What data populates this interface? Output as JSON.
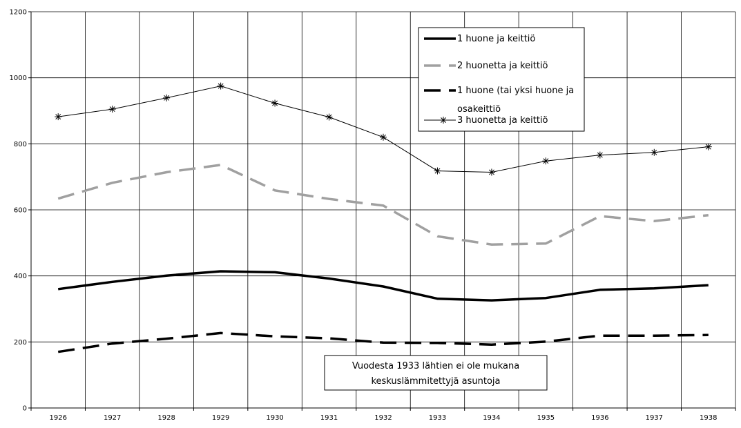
{
  "chart_data": {
    "type": "line",
    "title": "",
    "xlabel": "",
    "ylabel": "",
    "categories": [
      "1926",
      "1927",
      "1928",
      "1929",
      "1930",
      "1931",
      "1932",
      "1933",
      "1934",
      "1935",
      "1936",
      "1937",
      "1938"
    ],
    "y_ticks": [
      "0",
      "200",
      "400",
      "600",
      "800",
      "1000",
      "1200"
    ],
    "ylim": [
      0,
      1200
    ],
    "grid": true,
    "legend_position": "top-right",
    "series": [
      {
        "name": "1 huone ja keittiö",
        "style": "solid-thick",
        "color": "#000000",
        "values": [
          360,
          382,
          401,
          414,
          411,
          392,
          368,
          331,
          326,
          333,
          358,
          362,
          372
        ]
      },
      {
        "name": "2 huonetta ja keittiö",
        "style": "dashed-thick",
        "color": "#a0a0a0",
        "values": [
          634,
          682,
          714,
          736,
          659,
          633,
          613,
          520,
          495,
          498,
          581,
          566,
          584
        ]
      },
      {
        "name_lines": [
          "1 huone (tai yksi huone ja",
          "osakeittiö"
        ],
        "style": "dashed-thick",
        "color": "#000000",
        "values": [
          170,
          195,
          210,
          227,
          217,
          211,
          198,
          197,
          192,
          201,
          219,
          219,
          221
        ]
      },
      {
        "name": "3 huonetta ja keittiö",
        "style": "thin-star",
        "color": "#000000",
        "values": [
          882,
          905,
          939,
          975,
          923,
          881,
          820,
          718,
          714,
          748,
          766,
          774,
          791
        ]
      }
    ],
    "annotation": [
      "Vuodesta 1933 lähtien ei ole mukana",
      "keskuslämmitettyjä asuntoja"
    ]
  }
}
